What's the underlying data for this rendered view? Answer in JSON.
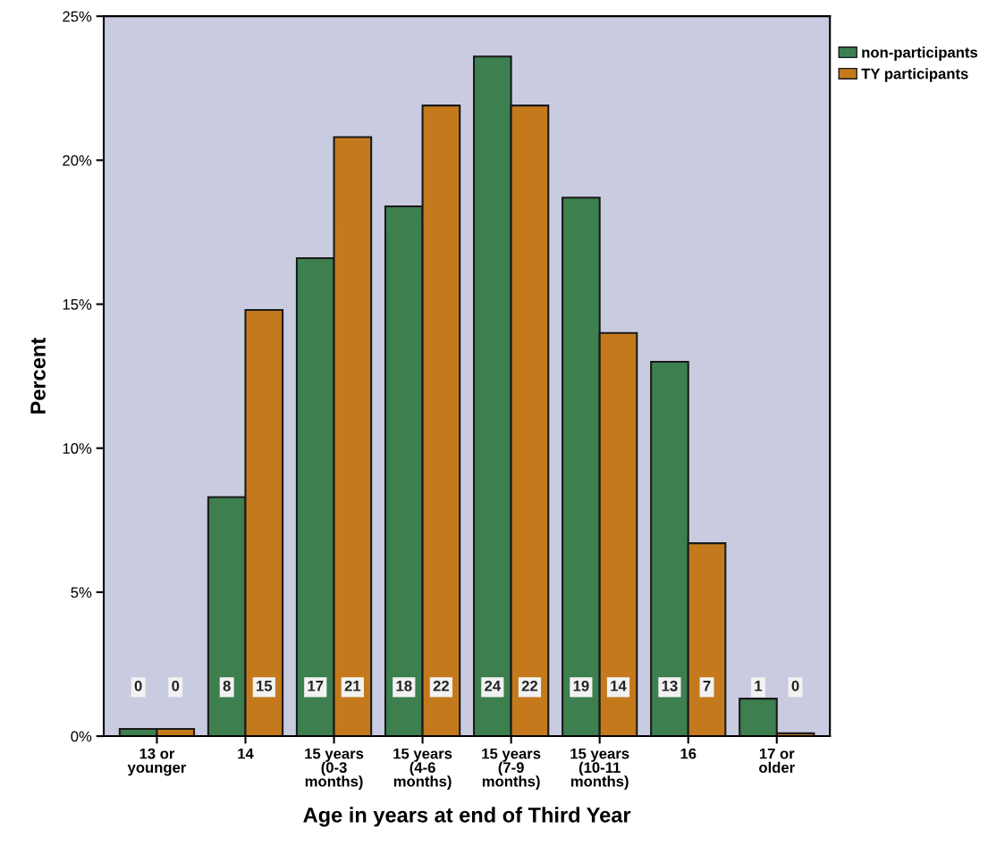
{
  "chart_data": {
    "type": "bar",
    "xlabel": "Age in years at end of Third Year",
    "ylabel": "Percent",
    "categories": [
      "13 or\nyounger",
      "14",
      "15 years\n(0-3\nmonths)",
      "15 years\n(4-6\nmonths)",
      "15 years\n(7-9\nmonths)",
      "15 years\n(10-11\nmonths)",
      "16",
      "17 or\nolder"
    ],
    "series": [
      {
        "name": "non-participants",
        "color": "#3d7f4f",
        "values": [
          0.25,
          8.3,
          16.6,
          18.4,
          23.6,
          18.7,
          13.0,
          1.3
        ],
        "value_labels": [
          "0",
          "8",
          "17",
          "18",
          "24",
          "19",
          "13",
          "1"
        ]
      },
      {
        "name": "TY participants",
        "color": "#c47a1c",
        "values": [
          0.25,
          14.8,
          20.8,
          21.9,
          21.9,
          14.0,
          6.7,
          0.1
        ],
        "value_labels": [
          "0",
          "15",
          "21",
          "22",
          "22",
          "14",
          "7",
          "0"
        ]
      }
    ],
    "ylim": [
      0,
      25
    ],
    "yticks": [
      {
        "value": 0,
        "label": "0%"
      },
      {
        "value": 5,
        "label": "5%"
      },
      {
        "value": 10,
        "label": "10%"
      },
      {
        "value": 15,
        "label": "15%"
      },
      {
        "value": 20,
        "label": "20%"
      },
      {
        "value": 25,
        "label": "25%"
      }
    ],
    "legend": "top right",
    "grid": false
  }
}
